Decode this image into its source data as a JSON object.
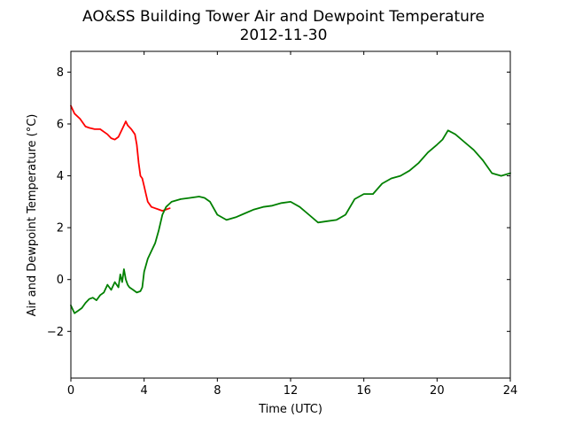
{
  "chart_data": {
    "type": "line",
    "title": "AO&SS Building Tower Air and Dewpoint Temperature",
    "subtitle": "2012-11-30",
    "xlabel": "Time (UTC)",
    "ylabel": "Air and Dewpoint Temperature (°C)",
    "xlim": [
      0,
      24
    ],
    "ylim": [
      -3.8,
      8.8
    ],
    "xticks": [
      0,
      4,
      8,
      12,
      16,
      20,
      24
    ],
    "yticks": [
      -2,
      0,
      2,
      4,
      6,
      8
    ],
    "grid": false,
    "series": [
      {
        "color": "#ff0000",
        "x": [
          0,
          0.2,
          0.5,
          0.8,
          1.0,
          1.3,
          1.6,
          1.8,
          2.0,
          2.2,
          2.4,
          2.6,
          2.8,
          3.0,
          3.1,
          3.3,
          3.5,
          3.6,
          3.7,
          3.8,
          3.9,
          4.0,
          4.1,
          4.2,
          4.4,
          4.6,
          4.8,
          5.0,
          5.2,
          5.4
        ],
        "values": [
          6.7,
          6.4,
          6.2,
          5.9,
          5.85,
          5.8,
          5.8,
          5.7,
          5.6,
          5.45,
          5.4,
          5.5,
          5.8,
          6.1,
          5.95,
          5.8,
          5.6,
          5.2,
          4.5,
          4.0,
          3.9,
          3.6,
          3.3,
          3.0,
          2.8,
          2.75,
          2.7,
          2.65,
          2.7,
          2.75
        ]
      },
      {
        "color": "#008000",
        "x": [
          0,
          0.2,
          0.4,
          0.6,
          0.8,
          1.0,
          1.2,
          1.4,
          1.6,
          1.8,
          2.0,
          2.2,
          2.4,
          2.6,
          2.7,
          2.8,
          2.9,
          3.0,
          3.1,
          3.2,
          3.4,
          3.6,
          3.8,
          3.9,
          4.0,
          4.2,
          4.4,
          4.6,
          4.8,
          5.0,
          5.2,
          5.5,
          6.0,
          6.5,
          7.0,
          7.3,
          7.6,
          8.0,
          8.5,
          9.0,
          9.5,
          10.0,
          10.5,
          11.0,
          11.5,
          12.0,
          12.5,
          13.0,
          13.5,
          14.0,
          14.5,
          15.0,
          15.5,
          16.0,
          16.5,
          17.0,
          17.5,
          18.0,
          18.5,
          19.0,
          19.5,
          20.0,
          20.3,
          20.6,
          21.0,
          21.5,
          22.0,
          22.5,
          23.0,
          23.5,
          24.0
        ],
        "values": [
          -1.0,
          -1.3,
          -1.2,
          -1.1,
          -0.9,
          -0.75,
          -0.7,
          -0.8,
          -0.6,
          -0.5,
          -0.2,
          -0.4,
          -0.1,
          -0.3,
          0.2,
          -0.1,
          0.4,
          0.0,
          -0.2,
          -0.3,
          -0.4,
          -0.5,
          -0.45,
          -0.3,
          0.3,
          0.8,
          1.1,
          1.4,
          1.9,
          2.5,
          2.8,
          3.0,
          3.1,
          3.15,
          3.2,
          3.15,
          3.0,
          2.5,
          2.3,
          2.4,
          2.55,
          2.7,
          2.8,
          2.85,
          2.95,
          3.0,
          2.8,
          2.5,
          2.2,
          2.25,
          2.3,
          2.5,
          3.1,
          3.3,
          3.3,
          3.7,
          3.9,
          4.0,
          4.2,
          4.5,
          4.9,
          5.2,
          5.4,
          5.75,
          5.6,
          5.3,
          5.0,
          4.6,
          4.1,
          4.0,
          4.1
        ]
      }
    ]
  }
}
